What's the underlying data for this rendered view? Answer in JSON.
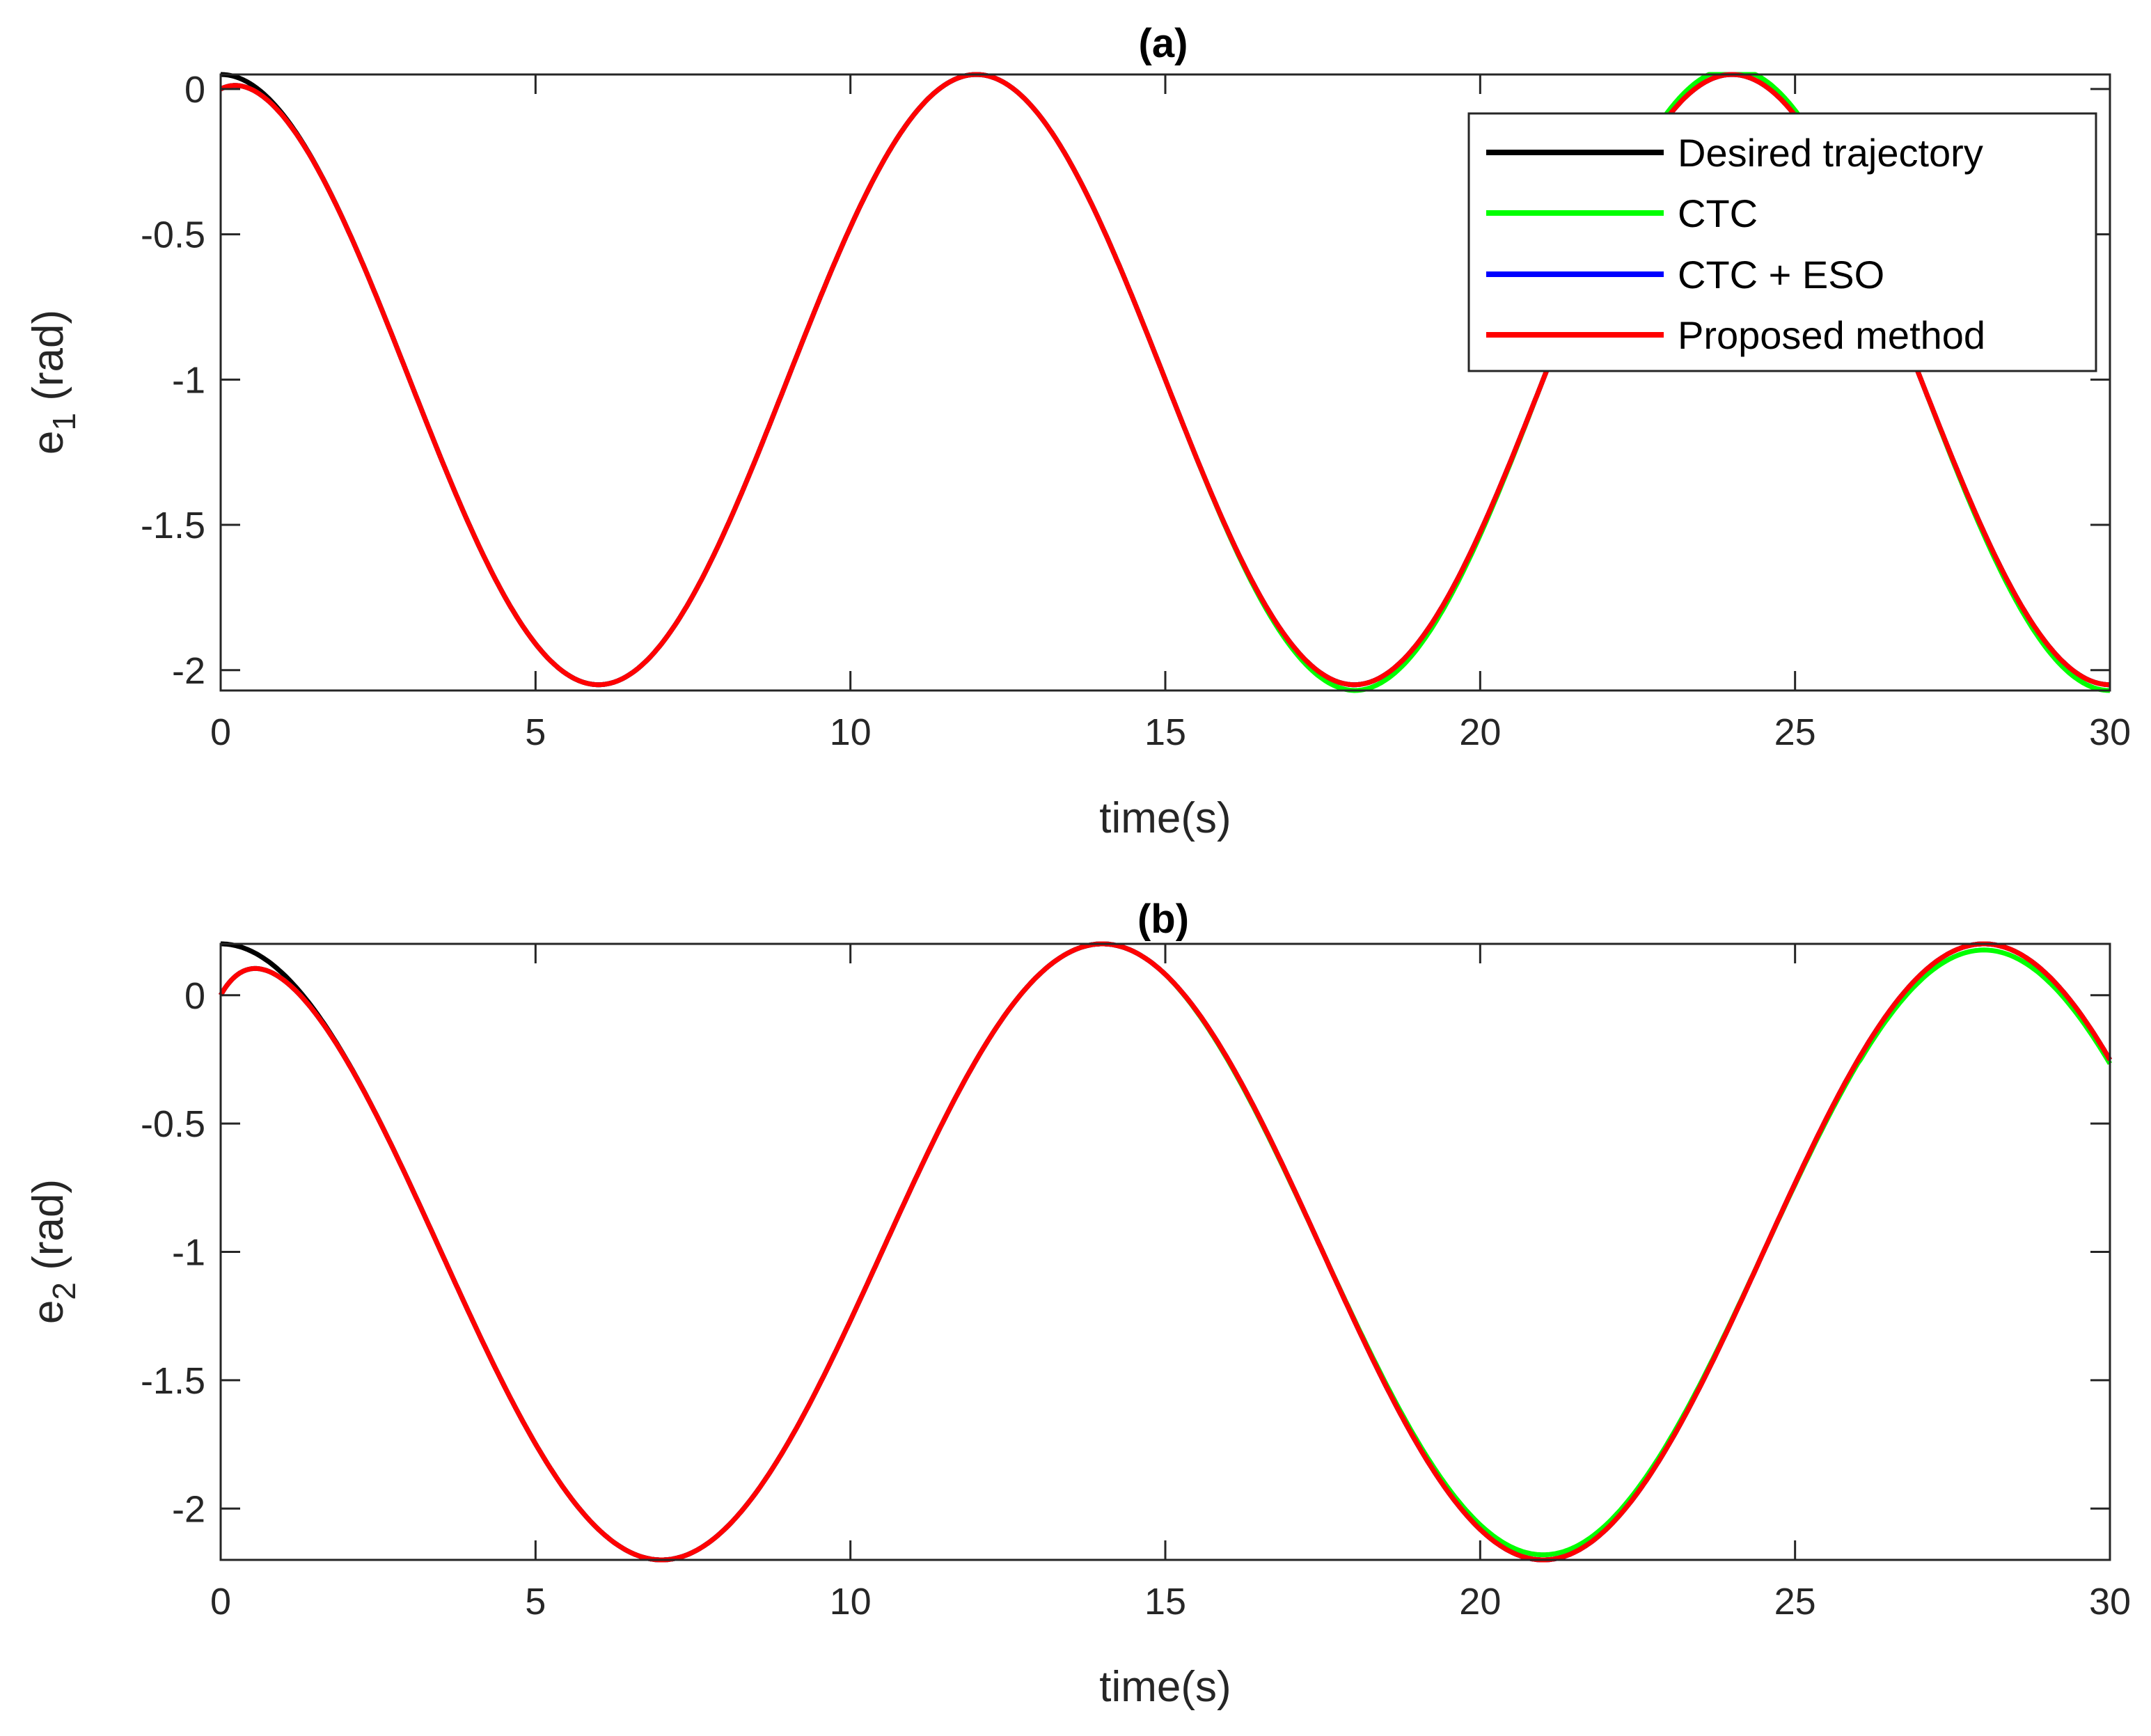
{
  "chart_data": [
    {
      "id": "a",
      "type": "line",
      "title": "(a)",
      "xlabel": "time(s)",
      "ylabel_main": "e",
      "ylabel_sub": "1",
      "ylabel_unit": " (rad)",
      "xlim": [
        0,
        30
      ],
      "ylim": [
        -2.07,
        0.05
      ],
      "xticks": [
        0,
        5,
        10,
        15,
        20,
        25,
        30
      ],
      "yticks": [
        0,
        -0.5,
        -1,
        -1.5,
        -2
      ],
      "xtick_labels": [
        "0",
        "5",
        "10",
        "15",
        "20",
        "25",
        "30"
      ],
      "ytick_labels": [
        "0",
        "-0.5",
        "-1",
        "-1.5",
        "-2"
      ],
      "legend": {
        "position": "top-right",
        "entries": [
          "Desired trajectory",
          "CTC",
          "CTC + ESO",
          "Proposed method"
        ]
      },
      "series": [
        {
          "name": "Desired trajectory",
          "color": "#000000",
          "formula": "desired",
          "amp": 1.0,
          "x": [
            0,
            3,
            6,
            9,
            12,
            15,
            18,
            21,
            24,
            27,
            30
          ],
          "values": [
            0.05,
            -1.0,
            -2.05,
            -1.0,
            0.05,
            -1.0,
            -2.05,
            -1.0,
            0.05,
            -1.0,
            -2.05
          ]
        },
        {
          "name": "CTC",
          "color": "#00ff00",
          "formula": "ctc",
          "amp": 1.0,
          "x": [
            0,
            3,
            6,
            9,
            12,
            15,
            18,
            21,
            24,
            27,
            30
          ],
          "values": [
            0.0,
            -1.0,
            -2.05,
            -1.0,
            0.05,
            -1.0,
            -2.07,
            -1.0,
            0.07,
            -1.0,
            -2.07
          ]
        },
        {
          "name": "CTC + ESO",
          "color": "#0000ff",
          "formula": "tracking",
          "amp": 1.0,
          "x": [
            0,
            3,
            6,
            9,
            12,
            15,
            18,
            21,
            24,
            27,
            30
          ],
          "values": [
            0.0,
            -1.0,
            -2.05,
            -1.0,
            0.05,
            -1.0,
            -2.05,
            -1.0,
            0.05,
            -1.0,
            -2.05
          ]
        },
        {
          "name": "Proposed method",
          "color": "#ff0000",
          "formula": "tracking",
          "amp": 1.0,
          "x": [
            0,
            3,
            6,
            9,
            12,
            15,
            18,
            21,
            24,
            27,
            30
          ],
          "values": [
            0.0,
            -1.0,
            -2.05,
            -1.0,
            0.05,
            -1.0,
            -2.05,
            -1.0,
            0.05,
            -1.0,
            -2.05
          ]
        }
      ],
      "period": 12,
      "center": -1.0,
      "amplitude": 1.05
    },
    {
      "id": "b",
      "type": "line",
      "title": "(b)",
      "xlabel": "time(s)",
      "ylabel_main": "e",
      "ylabel_sub": "2",
      "ylabel_unit": " (rad)",
      "xlim": [
        0,
        30
      ],
      "ylim": [
        -2.2,
        0.2
      ],
      "xticks": [
        0,
        5,
        10,
        15,
        20,
        25,
        30
      ],
      "yticks": [
        0,
        -0.5,
        -1,
        -1.5,
        -2
      ],
      "xtick_labels": [
        "0",
        "5",
        "10",
        "15",
        "20",
        "25",
        "30"
      ],
      "ytick_labels": [
        "0",
        "-0.5",
        "-1",
        "-1.5",
        "-2"
      ],
      "series": [
        {
          "name": "Desired trajectory",
          "color": "#000000",
          "formula": "desired",
          "x": [
            0,
            3.5,
            7,
            10.5,
            14,
            17.5,
            21,
            24.5,
            28,
            30
          ],
          "values": [
            0.2,
            -1.0,
            -2.2,
            -1.0,
            0.2,
            -1.0,
            -2.2,
            -1.0,
            0.2,
            -0.28
          ]
        },
        {
          "name": "CTC",
          "color": "#00ff00",
          "formula": "ctc",
          "x": [
            0,
            3.5,
            7,
            10.5,
            14,
            17.5,
            21,
            24.5,
            28,
            30
          ],
          "values": [
            0.0,
            -1.0,
            -2.2,
            -1.0,
            0.2,
            -1.0,
            -2.2,
            -1.0,
            0.17,
            -0.28
          ]
        },
        {
          "name": "CTC + ESO",
          "color": "#0000ff",
          "formula": "tracking",
          "x": [
            0,
            3.5,
            7,
            10.5,
            14,
            17.5,
            21,
            24.5,
            28,
            30
          ],
          "values": [
            0.0,
            -1.0,
            -2.2,
            -1.0,
            0.2,
            -1.0,
            -2.2,
            -1.0,
            0.2,
            -0.25
          ]
        },
        {
          "name": "Proposed method",
          "color": "#ff0000",
          "formula": "tracking",
          "x": [
            0,
            3.5,
            7,
            10.5,
            14,
            17.5,
            21,
            24.5,
            28,
            30
          ],
          "values": [
            0.0,
            -1.0,
            -2.2,
            -1.0,
            0.2,
            -1.0,
            -2.2,
            -1.0,
            0.2,
            -0.25
          ]
        }
      ],
      "period": 14,
      "center": -1.0,
      "amplitude": 1.2
    }
  ]
}
